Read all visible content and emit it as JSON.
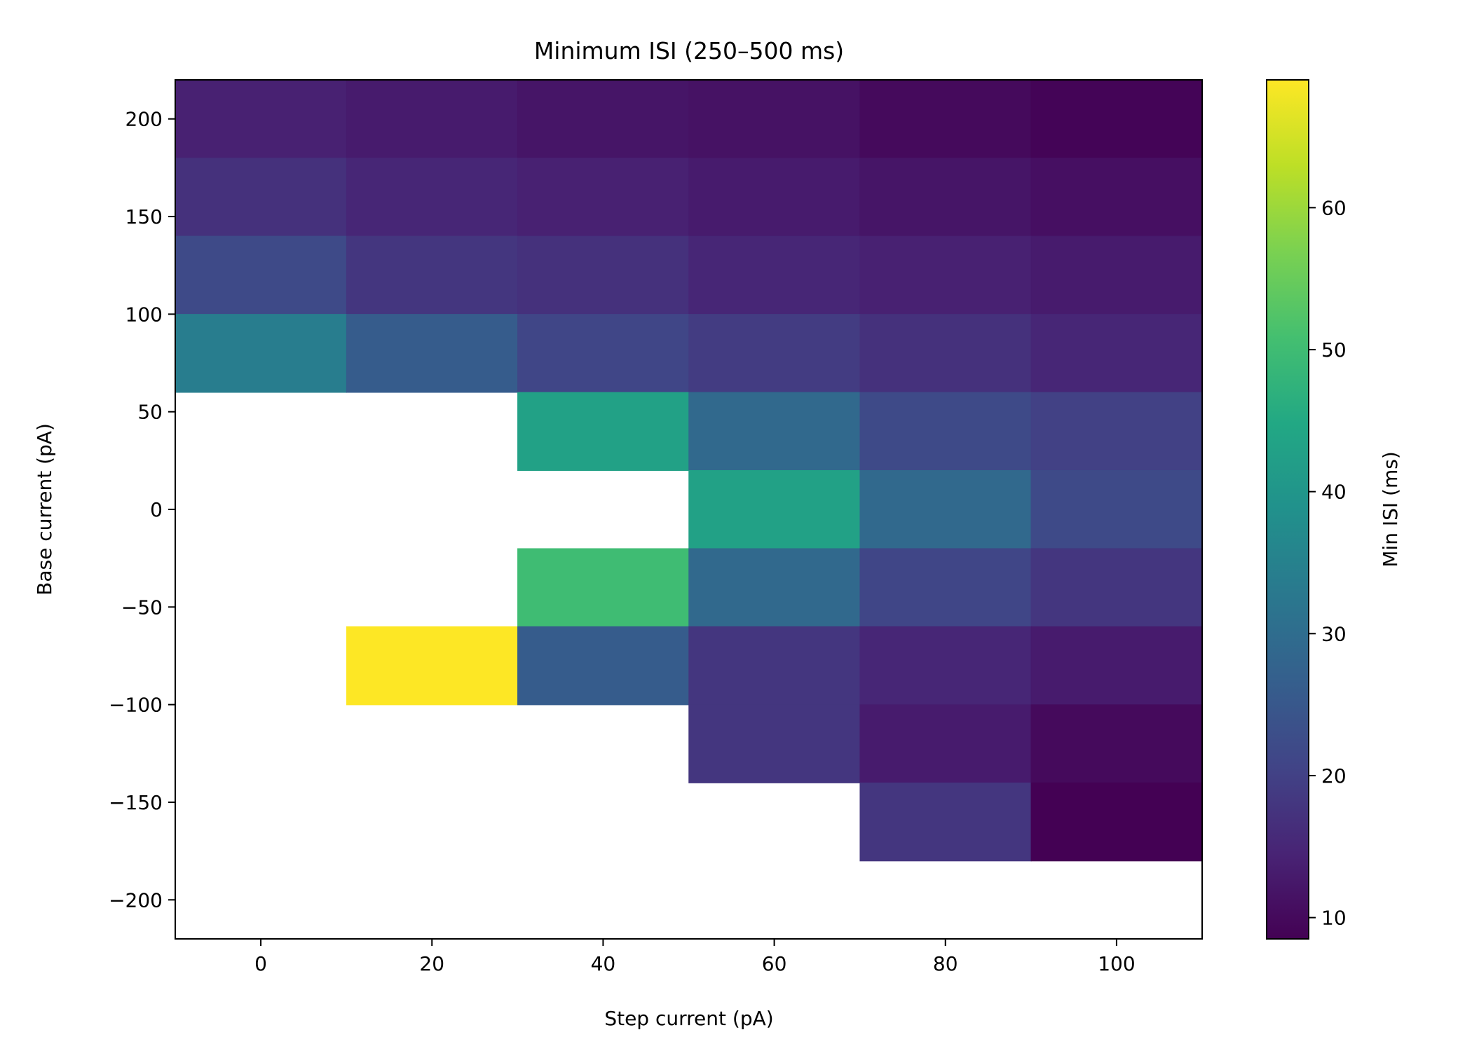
{
  "chart_data": {
    "type": "heatmap",
    "title": "Minimum ISI (250–500 ms)",
    "xlabel": "Step current (pA)",
    "ylabel": "Base current (pA)",
    "colorbar_label": "Min ISI (ms)",
    "colormap": "viridis",
    "x": [
      0,
      20,
      40,
      60,
      80,
      100
    ],
    "y": [
      -200,
      -180,
      -160,
      -140,
      -120,
      -100,
      -80,
      -60,
      -40,
      -20,
      0,
      20,
      40,
      60,
      80,
      100,
      120,
      140,
      160,
      180,
      200
    ],
    "xlim": [
      -10,
      110
    ],
    "ylim": [
      -220,
      220
    ],
    "x_ticks": [
      0,
      20,
      40,
      60,
      80,
      100
    ],
    "x_tick_labels": [
      "0",
      "20",
      "40",
      "60",
      "80",
      "100"
    ],
    "y_ticks": [
      -200,
      -150,
      -100,
      -50,
      0,
      50,
      100,
      150,
      200
    ],
    "y_tick_labels": [
      "−200",
      "−150",
      "−100",
      "−50",
      "0",
      "50",
      "100",
      "150",
      "200"
    ],
    "color_range": [
      8.5,
      69
    ],
    "colorbar_ticks": [
      10,
      20,
      30,
      40,
      50,
      60
    ],
    "colorbar_tick_labels": [
      "10",
      "20",
      "30",
      "40",
      "50",
      "60"
    ],
    "cells": [
      {
        "x": 0,
        "y": 200,
        "value": 14
      },
      {
        "x": 20,
        "y": 200,
        "value": 13
      },
      {
        "x": 40,
        "y": 200,
        "value": 12
      },
      {
        "x": 60,
        "y": 200,
        "value": 11.5
      },
      {
        "x": 80,
        "y": 200,
        "value": 10
      },
      {
        "x": 100,
        "y": 200,
        "value": 9
      },
      {
        "x": 0,
        "y": 160,
        "value": 17
      },
      {
        "x": 20,
        "y": 160,
        "value": 15
      },
      {
        "x": 40,
        "y": 160,
        "value": 14
      },
      {
        "x": 60,
        "y": 160,
        "value": 13
      },
      {
        "x": 80,
        "y": 160,
        "value": 12
      },
      {
        "x": 100,
        "y": 160,
        "value": 11
      }
    ],
    "cells_b": [
      {
        "x": 0,
        "y": 120,
        "value": 22
      },
      {
        "x": 20,
        "y": 120,
        "value": 18
      },
      {
        "x": 40,
        "y": 120,
        "value": 17
      },
      {
        "x": 60,
        "y": 120,
        "value": 15
      },
      {
        "x": 80,
        "y": 120,
        "value": 14
      },
      {
        "x": 100,
        "y": 120,
        "value": 13
      },
      {
        "x": 0,
        "y": 80,
        "value": 34
      },
      {
        "x": 20,
        "y": 80,
        "value": 26
      },
      {
        "x": 40,
        "y": 80,
        "value": 21
      },
      {
        "x": 60,
        "y": 80,
        "value": 19
      },
      {
        "x": 80,
        "y": 80,
        "value": 17
      },
      {
        "x": 100,
        "y": 80,
        "value": 15
      },
      {
        "x": 40,
        "y": 40,
        "value": 43
      },
      {
        "x": 60,
        "y": 40,
        "value": 29
      },
      {
        "x": 80,
        "y": 40,
        "value": 22
      },
      {
        "x": 100,
        "y": 40,
        "value": 20
      },
      {
        "x": 60,
        "y": 0,
        "value": 43
      },
      {
        "x": 80,
        "y": 0,
        "value": 29
      },
      {
        "x": 100,
        "y": 0,
        "value": 22
      },
      {
        "x": 40,
        "y": -40,
        "value": 50
      },
      {
        "x": 60,
        "y": -40,
        "value": 29
      },
      {
        "x": 80,
        "y": -40,
        "value": 21
      },
      {
        "x": 100,
        "y": -40,
        "value": 18
      },
      {
        "x": 20,
        "y": -80,
        "value": 69
      },
      {
        "x": 40,
        "y": -80,
        "value": 26
      },
      {
        "x": 60,
        "y": -80,
        "value": 18
      },
      {
        "x": 80,
        "y": -80,
        "value": 15
      },
      {
        "x": 100,
        "y": -80,
        "value": 13
      },
      {
        "x": 60,
        "y": -120,
        "value": 18
      },
      {
        "x": 80,
        "y": -120,
        "value": 13
      },
      {
        "x": 100,
        "y": -120,
        "value": 10
      },
      {
        "x": 80,
        "y": -160,
        "value": 18
      },
      {
        "x": 100,
        "y": -160,
        "value": 8.5
      }
    ],
    "cell_width": 20,
    "cell_height": 40
  }
}
